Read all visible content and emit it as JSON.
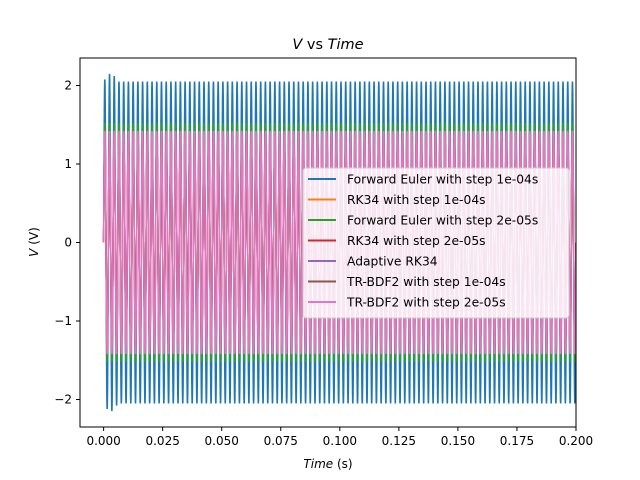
{
  "chart_data": {
    "type": "line",
    "title": "V vs Time",
    "title_parts": {
      "v": "V",
      "mid": " vs ",
      "time": "Time"
    },
    "xlabel": "Time (s)",
    "xlabel_parts": {
      "var": "Time",
      "unit": " (s)"
    },
    "ylabel": "V (V)",
    "ylabel_parts": {
      "var": "V",
      "unit": " (V)"
    },
    "xlim": [
      -0.01,
      0.2
    ],
    "ylim": [
      -2.35,
      2.35
    ],
    "xticks": [
      "0.000",
      "0.025",
      "0.050",
      "0.075",
      "0.100",
      "0.125",
      "0.150",
      "0.175",
      "0.200"
    ],
    "xtick_values": [
      0,
      0.025,
      0.05,
      0.075,
      0.1,
      0.125,
      0.15,
      0.175,
      0.2
    ],
    "yticks": [
      "2",
      "1",
      "0",
      "−1",
      "−2"
    ],
    "ytick_values": [
      2,
      1,
      0,
      -1,
      -2
    ],
    "grid": false,
    "legend_position": "center-right",
    "signal": {
      "frequency_hz": 500,
      "x_start": 0,
      "x_end": 0.2
    },
    "series": [
      {
        "name": "Forward Euler with step 1e-04s",
        "color": "#1f77b4",
        "amplitude": 2.05,
        "peak": 2.15
      },
      {
        "name": "RK34 with step 1e-04s",
        "color": "#ff7f0e",
        "amplitude": 1.4
      },
      {
        "name": "Forward Euler with step 2e-05s",
        "color": "#2ca02c",
        "amplitude": 1.52
      },
      {
        "name": "RK34 with step 2e-05s",
        "color": "#d62728",
        "amplitude": 1.4
      },
      {
        "name": "Adaptive RK34",
        "color": "#9467bd",
        "amplitude": 1.4
      },
      {
        "name": "TR-BDF2 with step 1e-04s",
        "color": "#8c564b",
        "amplitude": 1.4
      },
      {
        "name": "TR-BDF2 with step 2e-05s",
        "color": "#e377c2",
        "amplitude": 1.42
      }
    ]
  }
}
